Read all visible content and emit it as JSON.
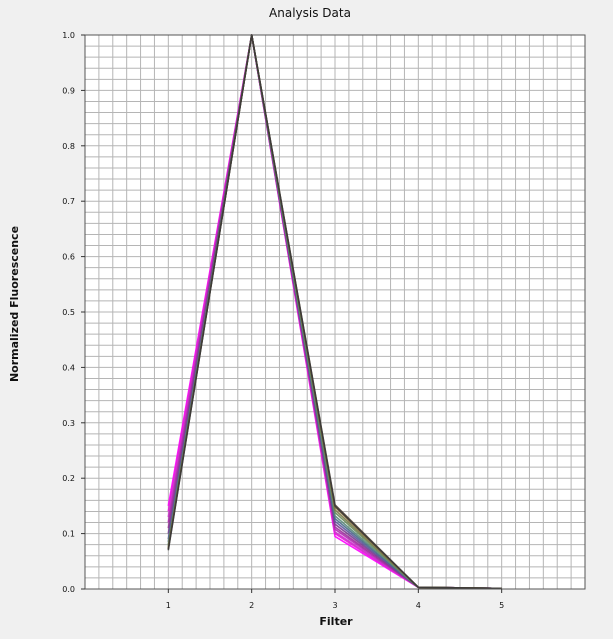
{
  "chart_data": {
    "type": "line",
    "title": "Analysis Data",
    "xlabel": "Filter",
    "ylabel": "Normalized Fluorescence",
    "xlim": [
      0,
      6
    ],
    "ylim": [
      0,
      1.0
    ],
    "x": [
      1,
      2,
      3,
      4,
      5
    ],
    "xticks": [
      "1",
      "2",
      "3",
      "4",
      "5"
    ],
    "yticks": [
      "0.0",
      "0.1",
      "0.2",
      "0.3",
      "0.4",
      "0.5",
      "0.6",
      "0.7",
      "0.8",
      "0.9",
      "1.0"
    ],
    "grid": true,
    "series": [
      {
        "color": "#ff00ff",
        "values": [
          0.15,
          1.0,
          0.095,
          0.003,
          0.001
        ]
      },
      {
        "color": "#e619d6",
        "values": [
          0.14,
          1.0,
          0.1,
          0.003,
          0.001
        ]
      },
      {
        "color": "#cc33cc",
        "values": [
          0.13,
          1.0,
          0.103,
          0.003,
          0.001
        ]
      },
      {
        "color": "#b22ab2",
        "values": [
          0.12,
          1.0,
          0.108,
          0.003,
          0.001
        ]
      },
      {
        "color": "#993399",
        "values": [
          0.11,
          1.0,
          0.112,
          0.003,
          0.001
        ]
      },
      {
        "color": "#7a3d8f",
        "values": [
          0.1,
          1.0,
          0.117,
          0.003,
          0.001
        ]
      },
      {
        "color": "#5c5a9a",
        "values": [
          0.09,
          1.0,
          0.122,
          0.003,
          0.001
        ]
      },
      {
        "color": "#4a6a8a",
        "values": [
          0.085,
          1.0,
          0.127,
          0.003,
          0.001
        ]
      },
      {
        "color": "#5a8a7a",
        "values": [
          0.08,
          1.0,
          0.132,
          0.003,
          0.001
        ]
      },
      {
        "color": "#6a8a5a",
        "values": [
          0.078,
          1.0,
          0.138,
          0.003,
          0.001
        ]
      },
      {
        "color": "#7a7a4a",
        "values": [
          0.075,
          1.0,
          0.143,
          0.003,
          0.001
        ]
      },
      {
        "color": "#8a6a3a",
        "values": [
          0.073,
          1.0,
          0.148,
          0.003,
          0.001
        ]
      },
      {
        "color": "#5a4a3a",
        "values": [
          0.072,
          1.0,
          0.152,
          0.003,
          0.001
        ]
      },
      {
        "color": "#3a3a3a",
        "values": [
          0.07,
          1.0,
          0.15,
          0.003,
          0.001
        ]
      }
    ]
  }
}
